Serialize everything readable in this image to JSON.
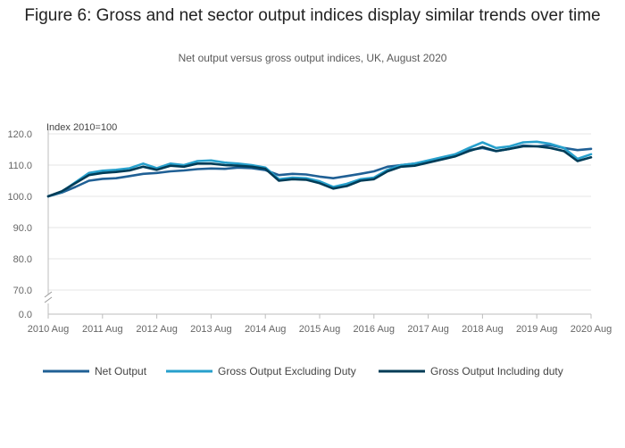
{
  "chart_data": {
    "type": "line",
    "title": "Figure 6: Gross and net sector output indices display similar trends over time",
    "subtitle": "Net output versus gross output indices, UK, August 2020",
    "ylabel": "Index 2010=100",
    "y_ticks": [
      "0.0",
      "70.0",
      "80.0",
      "90.0",
      "100.0",
      "110.0",
      "120.0"
    ],
    "x_ticks": [
      "2010 Aug",
      "2011 Aug",
      "2012 Aug",
      "2013 Aug",
      "2014 Aug",
      "2015 Aug",
      "2016 Aug",
      "2017 Aug",
      "2018 Aug",
      "2019 Aug",
      "2020 Aug"
    ],
    "axis_break": true,
    "ylim": [
      70,
      120
    ],
    "xlim": [
      "2010-08",
      "2020-08"
    ],
    "grid": "horizontal",
    "legend_position": "bottom",
    "series": [
      {
        "name": "Net Output",
        "color": "#206095",
        "points": [
          [
            "2010-08",
            100.0
          ],
          [
            "2010-11",
            101.2
          ],
          [
            "2011-02",
            103.0
          ],
          [
            "2011-05",
            105.0
          ],
          [
            "2011-08",
            105.6
          ],
          [
            "2011-11",
            105.8
          ],
          [
            "2012-02",
            106.5
          ],
          [
            "2012-05",
            107.2
          ],
          [
            "2012-08",
            107.5
          ],
          [
            "2012-11",
            108.0
          ],
          [
            "2013-02",
            108.3
          ],
          [
            "2013-05",
            108.7
          ],
          [
            "2013-08",
            108.9
          ],
          [
            "2013-11",
            108.8
          ],
          [
            "2014-02",
            109.2
          ],
          [
            "2014-05",
            109.0
          ],
          [
            "2014-08",
            108.4
          ],
          [
            "2014-11",
            106.8
          ],
          [
            "2015-02",
            107.2
          ],
          [
            "2015-05",
            107.0
          ],
          [
            "2015-08",
            106.3
          ],
          [
            "2015-11",
            105.8
          ],
          [
            "2016-02",
            106.5
          ],
          [
            "2016-05",
            107.2
          ],
          [
            "2016-08",
            108.0
          ],
          [
            "2016-11",
            109.5
          ],
          [
            "2017-02",
            110.0
          ],
          [
            "2017-05",
            110.5
          ],
          [
            "2017-08",
            111.2
          ],
          [
            "2017-11",
            112.0
          ],
          [
            "2018-02",
            113.0
          ],
          [
            "2018-05",
            114.8
          ],
          [
            "2018-08",
            115.5
          ],
          [
            "2018-11",
            114.5
          ],
          [
            "2019-02",
            115.2
          ],
          [
            "2019-05",
            116.3
          ],
          [
            "2019-08",
            116.0
          ],
          [
            "2019-11",
            116.4
          ],
          [
            "2020-02",
            115.5
          ],
          [
            "2020-05",
            114.8
          ],
          [
            "2020-08",
            115.2
          ]
        ]
      },
      {
        "name": "Gross Output Excluding Duty",
        "color": "#27a0cc",
        "points": [
          [
            "2010-08",
            100.0
          ],
          [
            "2010-11",
            101.5
          ],
          [
            "2011-02",
            104.5
          ],
          [
            "2011-05",
            107.5
          ],
          [
            "2011-08",
            108.2
          ],
          [
            "2011-11",
            108.5
          ],
          [
            "2012-02",
            109.0
          ],
          [
            "2012-05",
            110.5
          ],
          [
            "2012-08",
            109.0
          ],
          [
            "2012-11",
            110.5
          ],
          [
            "2013-02",
            110.0
          ],
          [
            "2013-05",
            111.3
          ],
          [
            "2013-08",
            111.5
          ],
          [
            "2013-11",
            110.8
          ],
          [
            "2014-02",
            110.5
          ],
          [
            "2014-05",
            110.0
          ],
          [
            "2014-08",
            109.2
          ],
          [
            "2014-11",
            105.5
          ],
          [
            "2015-02",
            106.0
          ],
          [
            "2015-05",
            105.8
          ],
          [
            "2015-08",
            104.8
          ],
          [
            "2015-11",
            103.0
          ],
          [
            "2016-02",
            104.0
          ],
          [
            "2016-05",
            105.5
          ],
          [
            "2016-08",
            106.0
          ],
          [
            "2016-11",
            108.5
          ],
          [
            "2017-02",
            110.0
          ],
          [
            "2017-05",
            110.5
          ],
          [
            "2017-08",
            111.5
          ],
          [
            "2017-11",
            112.5
          ],
          [
            "2018-02",
            113.5
          ],
          [
            "2018-05",
            115.5
          ],
          [
            "2018-08",
            117.3
          ],
          [
            "2018-11",
            115.5
          ],
          [
            "2019-02",
            116.0
          ],
          [
            "2019-05",
            117.3
          ],
          [
            "2019-08",
            117.5
          ],
          [
            "2019-11",
            116.8
          ],
          [
            "2020-02",
            115.5
          ],
          [
            "2020-05",
            112.0
          ],
          [
            "2020-08",
            113.5
          ]
        ]
      },
      {
        "name": "Gross Output Including duty",
        "color": "#003c57",
        "points": [
          [
            "2010-08",
            100.0
          ],
          [
            "2010-11",
            101.6
          ],
          [
            "2011-02",
            104.2
          ],
          [
            "2011-05",
            106.8
          ],
          [
            "2011-08",
            107.5
          ],
          [
            "2011-11",
            107.8
          ],
          [
            "2012-02",
            108.3
          ],
          [
            "2012-05",
            109.5
          ],
          [
            "2012-08",
            108.5
          ],
          [
            "2012-11",
            109.8
          ],
          [
            "2013-02",
            109.5
          ],
          [
            "2013-05",
            110.5
          ],
          [
            "2013-08",
            110.5
          ],
          [
            "2013-11",
            110.0
          ],
          [
            "2014-02",
            109.8
          ],
          [
            "2014-05",
            109.5
          ],
          [
            "2014-08",
            108.8
          ],
          [
            "2014-11",
            105.0
          ],
          [
            "2015-02",
            105.5
          ],
          [
            "2015-05",
            105.3
          ],
          [
            "2015-08",
            104.2
          ],
          [
            "2015-11",
            102.5
          ],
          [
            "2016-02",
            103.3
          ],
          [
            "2016-05",
            105.0
          ],
          [
            "2016-08",
            105.5
          ],
          [
            "2016-11",
            108.0
          ],
          [
            "2017-02",
            109.5
          ],
          [
            "2017-05",
            109.8
          ],
          [
            "2017-08",
            110.8
          ],
          [
            "2017-11",
            111.8
          ],
          [
            "2018-02",
            112.8
          ],
          [
            "2018-05",
            114.5
          ],
          [
            "2018-08",
            115.8
          ],
          [
            "2018-11",
            114.5
          ],
          [
            "2019-02",
            115.2
          ],
          [
            "2019-05",
            116.0
          ],
          [
            "2019-08",
            116.0
          ],
          [
            "2019-11",
            115.5
          ],
          [
            "2020-02",
            114.5
          ],
          [
            "2020-05",
            111.3
          ],
          [
            "2020-08",
            112.5
          ]
        ]
      }
    ]
  }
}
